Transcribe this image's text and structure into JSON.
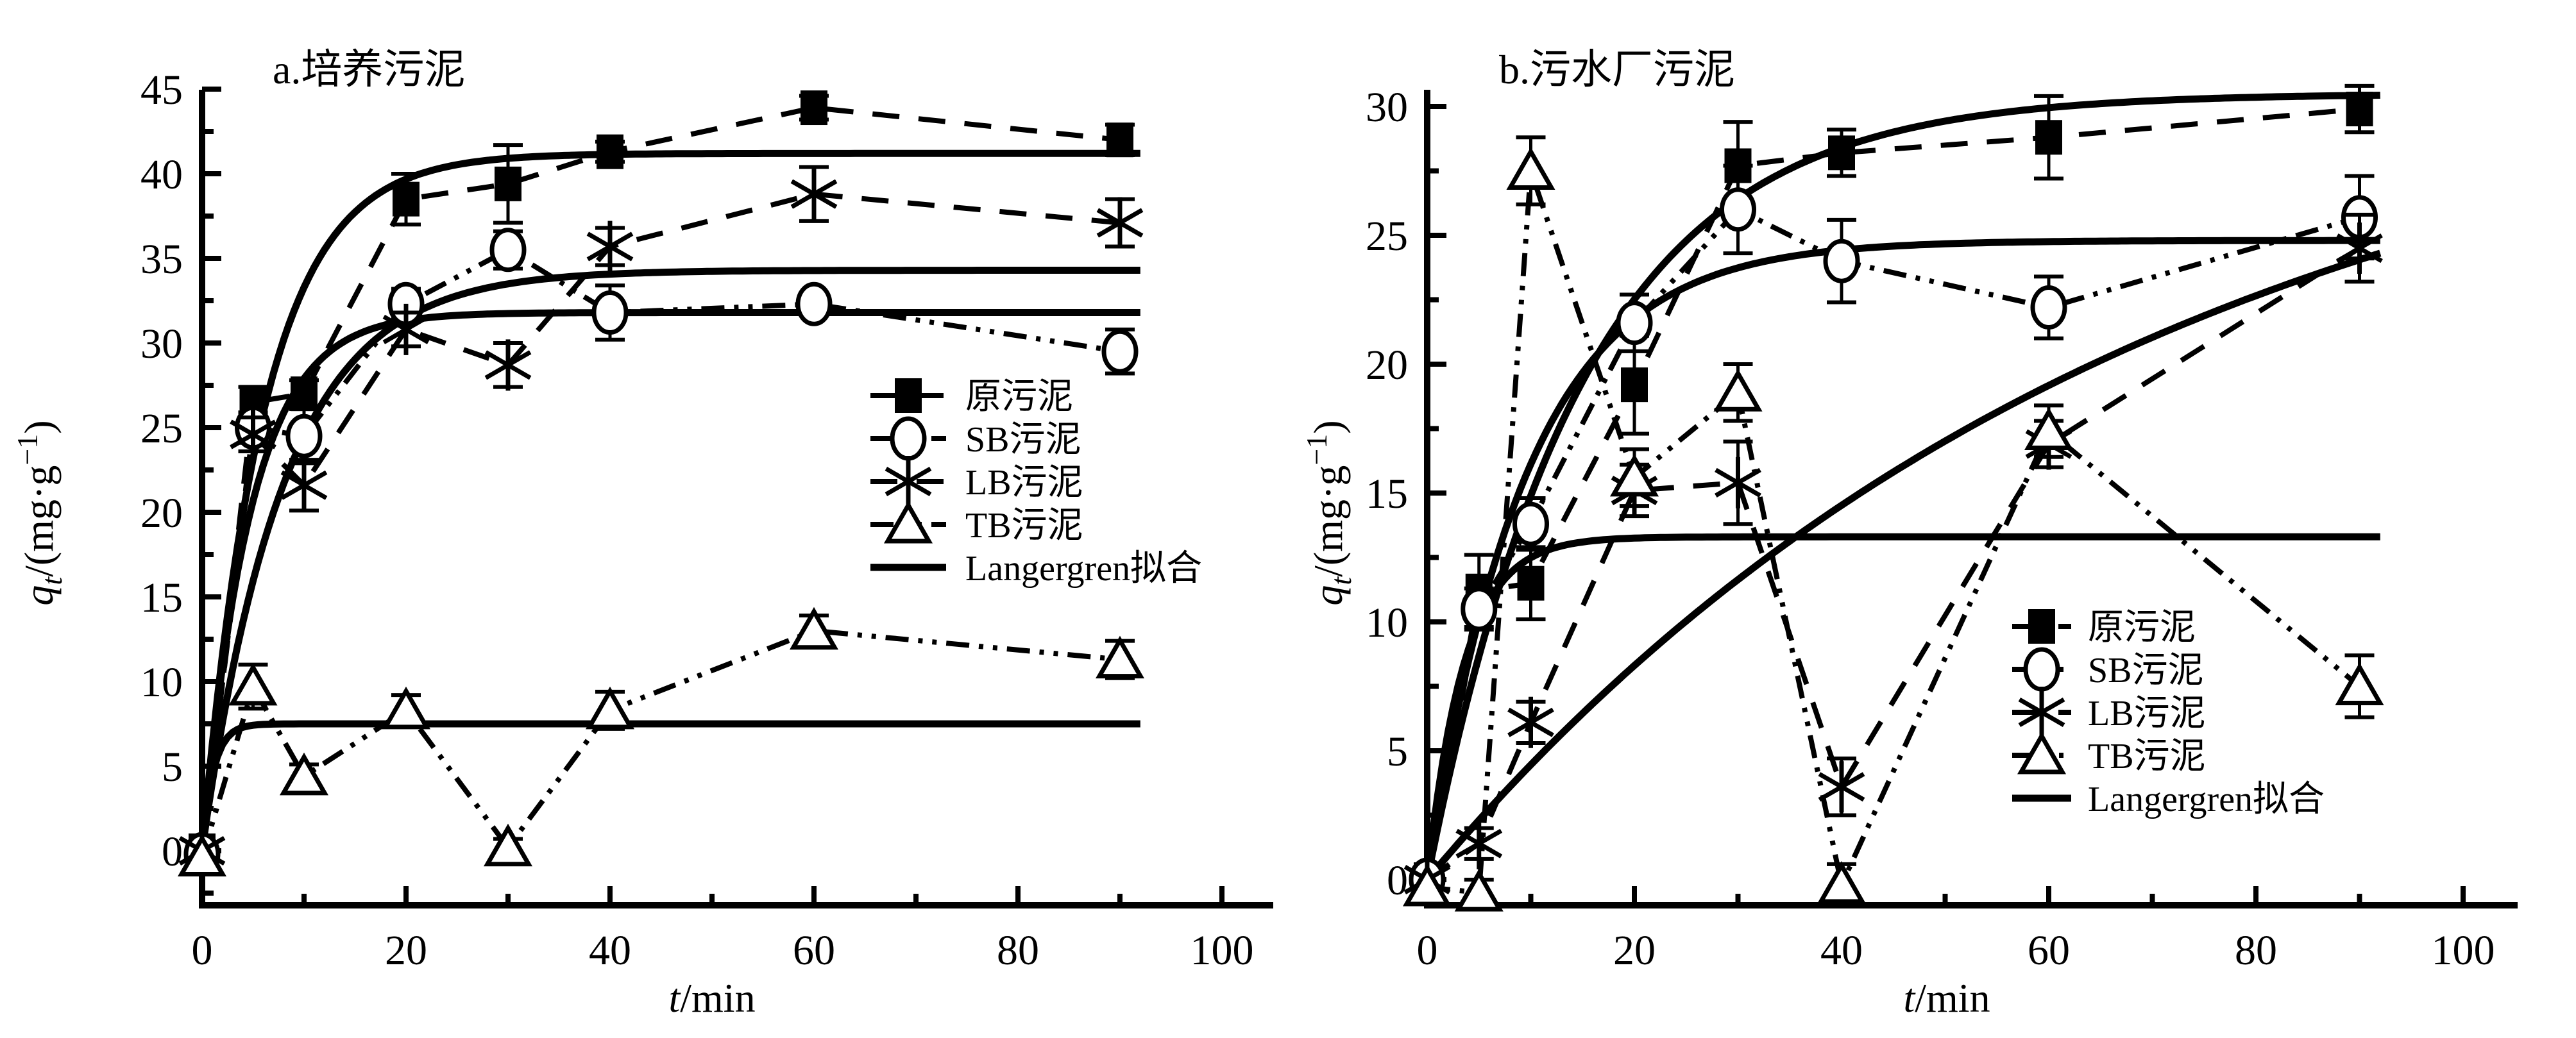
{
  "figure": {
    "background": "#ffffff",
    "ink_color": "#000000",
    "xlabel": {
      "var": "t",
      "rest": "/min"
    },
    "ylabel": {
      "var": "q",
      "sub": "t",
      "unit_open": "/(mg·g",
      "sup": "−1",
      "unit_close": ")"
    }
  },
  "chart_data": [
    {
      "type": "line",
      "panel_id": "a",
      "title": "a.培养污泥",
      "xlabel": "t/min",
      "ylabel": "qt/(mg·g−1)",
      "xlim": [
        0,
        105
      ],
      "ylim": [
        -3.2,
        45
      ],
      "x_major_ticks": [
        0,
        20,
        40,
        60,
        80,
        100
      ],
      "x_minor_ticks": [
        10,
        30,
        50,
        70,
        90
      ],
      "y_major_ticks": [
        0,
        5,
        10,
        15,
        20,
        25,
        30,
        35,
        40,
        45
      ],
      "y_minor_ticks": [
        -2.5,
        2.5,
        7.5,
        12.5,
        17.5,
        22.5,
        27.5,
        32.5,
        37.5,
        42.5
      ],
      "grid": false,
      "legend_position": "center-right",
      "x": [
        0,
        5,
        10,
        20,
        30,
        40,
        60,
        90
      ],
      "series": [
        {
          "name": "原污泥",
          "marker": "square",
          "filled": true,
          "linestyle": "dash",
          "y": [
            0,
            26.5,
            27.0,
            38.5,
            39.4,
            41.3,
            43.9,
            42.0
          ],
          "err": [
            0,
            0.9,
            0.8,
            1.5,
            2.3,
            0.6,
            0.7,
            0.9
          ]
        },
        {
          "name": "SB污泥",
          "marker": "circle",
          "filled": false,
          "linestyle": "dashdotdot",
          "y": [
            -0.2,
            25.0,
            24.5,
            32.3,
            35.5,
            31.8,
            32.3,
            29.5
          ],
          "err": [
            0,
            0.9,
            1.6,
            0.9,
            1.1,
            1.6,
            0.5,
            1.3
          ]
        },
        {
          "name": "LB污泥",
          "marker": "asterisk",
          "filled": false,
          "linestyle": "dash",
          "y": [
            0,
            24.6,
            21.6,
            30.8,
            28.7,
            35.7,
            38.8,
            37.1
          ],
          "err": [
            0,
            1.0,
            1.5,
            1.0,
            1.3,
            1.1,
            1.6,
            1.4
          ]
        },
        {
          "name": "TB污泥",
          "marker": "triangle",
          "filled": false,
          "linestyle": "dashdotdot",
          "y": [
            -0.4,
            9.7,
            4.4,
            8.3,
            0.2,
            8.3,
            13.0,
            11.3
          ],
          "err": [
            0,
            1.3,
            0.7,
            0.9,
            0.5,
            1.1,
            0.9,
            1.1
          ]
        }
      ],
      "fit_label": "Langergren拟合",
      "fits": [
        {
          "series": "原污泥",
          "model": "qe*(1-exp(-k*t))",
          "qe": 41.2,
          "k": 0.165
        },
        {
          "series": "SB污泥",
          "model": "qe*(1-exp(-k*t))",
          "qe": 31.8,
          "k": 0.21
        },
        {
          "series": "LB污泥",
          "model": "qe*(1-exp(-k*t))",
          "qe": 34.3,
          "k": 0.125
        },
        {
          "series": "TB污泥",
          "model": "qe*(1-exp(-k*t))",
          "qe": 7.5,
          "k": 0.9
        }
      ]
    },
    {
      "type": "line",
      "panel_id": "b",
      "title": "b.污水厂污泥",
      "xlabel": "t/min",
      "ylabel": "qt/(mg·g−1)",
      "xlim": [
        0,
        105
      ],
      "ylim": [
        -1.0,
        30.6
      ],
      "x_major_ticks": [
        0,
        20,
        40,
        60,
        80,
        100
      ],
      "x_minor_ticks": [
        10,
        30,
        50,
        70,
        90
      ],
      "y_major_ticks": [
        0,
        5,
        10,
        15,
        20,
        25,
        30
      ],
      "y_minor_ticks": [
        2.5,
        7.5,
        12.5,
        17.5,
        22.5,
        27.5
      ],
      "grid": false,
      "legend_position": "lower-right",
      "x": [
        0,
        5,
        10,
        20,
        30,
        40,
        60,
        90
      ],
      "series": [
        {
          "name": "原污泥",
          "marker": "square",
          "filled": true,
          "linestyle": "dash",
          "y": [
            0,
            11.2,
            11.5,
            19.2,
            27.7,
            28.2,
            28.8,
            29.9
          ],
          "err": [
            0,
            1.4,
            1.4,
            1.9,
            1.7,
            0.9,
            1.6,
            0.9
          ]
        },
        {
          "name": "SB污泥",
          "marker": "circle",
          "filled": false,
          "linestyle": "dashdotdot",
          "y": [
            0,
            10.5,
            13.8,
            21.6,
            26.0,
            24.0,
            22.2,
            25.7
          ],
          "err": [
            0,
            0.8,
            1.0,
            1.1,
            1.7,
            1.6,
            1.2,
            1.6
          ]
        },
        {
          "name": "LB污泥",
          "marker": "asterisk",
          "filled": false,
          "linestyle": "dash",
          "y": [
            0,
            1.4,
            6.1,
            15.1,
            15.4,
            3.6,
            16.9,
            24.5
          ],
          "err": [
            0,
            0.6,
            0.8,
            1.0,
            1.6,
            1.1,
            0.9,
            1.3
          ]
        },
        {
          "name": "TB污泥",
          "marker": "triangle",
          "filled": false,
          "linestyle": "dashdotdot",
          "y": [
            -0.3,
            -0.5,
            27.5,
            15.6,
            18.9,
            -0.2,
            17.4,
            7.5
          ],
          "err": [
            0,
            0.5,
            1.3,
            1.1,
            1.1,
            0.8,
            1.0,
            1.2
          ]
        }
      ],
      "fit_label": "Langergren拟合",
      "fits": [
        {
          "series": "原污泥",
          "model": "qe*(1-exp(-k*t))",
          "qe": 30.5,
          "k": 0.067
        },
        {
          "series": "SB污泥",
          "model": "qe*(1-exp(-k*t))",
          "qe": 24.8,
          "k": 0.105
        },
        {
          "series": "LB污泥",
          "model": "qe*(1-exp(-k*t))",
          "qe": 33.0,
          "k": 0.0145
        },
        {
          "series": "TB污泥",
          "model": "qe*(1-exp(-k*t))",
          "qe": 13.3,
          "k": 0.28
        }
      ]
    }
  ]
}
